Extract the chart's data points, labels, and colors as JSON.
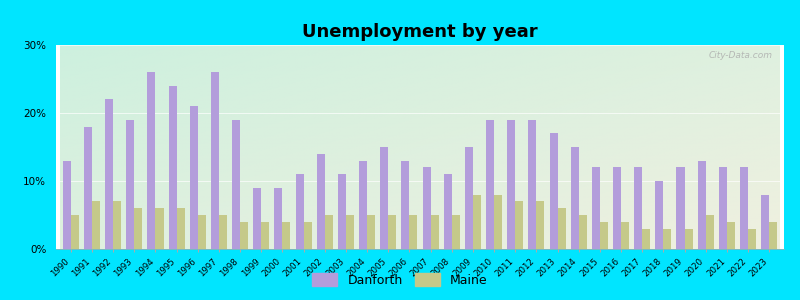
{
  "title": "Unemployment by year",
  "years": [
    1990,
    1991,
    1992,
    1993,
    1994,
    1995,
    1996,
    1997,
    1998,
    1999,
    2000,
    2001,
    2002,
    2003,
    2004,
    2005,
    2006,
    2007,
    2008,
    2009,
    2010,
    2011,
    2012,
    2013,
    2014,
    2015,
    2016,
    2017,
    2018,
    2019,
    2020,
    2021,
    2022,
    2023
  ],
  "danforth": [
    13,
    18,
    22,
    19,
    26,
    24,
    21,
    26,
    19,
    9,
    9,
    11,
    14,
    11,
    13,
    15,
    13,
    12,
    11,
    15,
    19,
    19,
    19,
    17,
    15,
    12,
    12,
    12,
    10,
    12,
    13,
    12,
    12,
    8
  ],
  "maine": [
    5,
    7,
    7,
    6,
    6,
    6,
    5,
    5,
    4,
    4,
    4,
    4,
    5,
    5,
    5,
    5,
    5,
    5,
    5,
    8,
    8,
    7,
    7,
    6,
    5,
    4,
    4,
    3,
    3,
    3,
    5,
    4,
    3,
    4
  ],
  "danforth_color": "#b39ddb",
  "maine_color": "#c5c98a",
  "bg_top_left": "#cdf0de",
  "bg_bottom_right": "#f0f0e0",
  "outer_bg": "#00e5ff",
  "ylim": [
    0,
    30
  ],
  "yticks": [
    0,
    10,
    20,
    30
  ],
  "ytick_labels": [
    "0%",
    "10%",
    "20%",
    "30%"
  ],
  "bar_width": 0.38,
  "title_fontsize": 13,
  "legend_fontsize": 9
}
